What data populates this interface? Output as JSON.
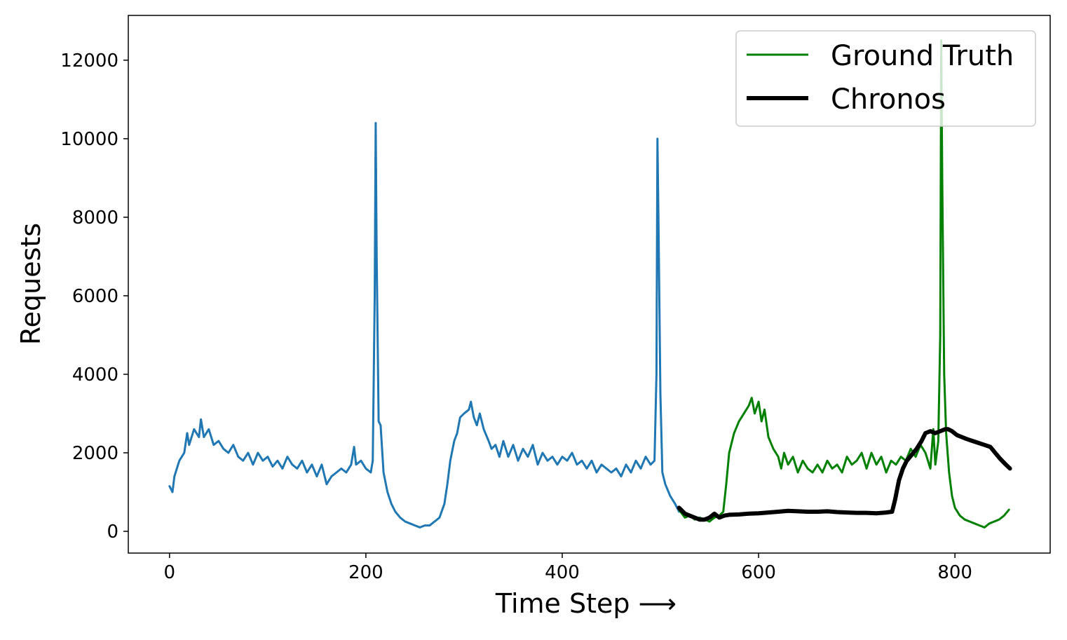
{
  "chart_data": {
    "type": "line",
    "title": "",
    "xlabel": "Time Step ⟶",
    "ylabel": "Requests",
    "xlim": [
      -42,
      897
    ],
    "ylim": [
      -554,
      13140
    ],
    "xticks": [
      0,
      200,
      400,
      600,
      800
    ],
    "xtick_labels": [
      "0",
      "200",
      "400",
      "600",
      "800"
    ],
    "yticks": [
      0,
      2000,
      4000,
      6000,
      8000,
      10000,
      12000
    ],
    "ytick_labels": [
      "0",
      "2000",
      "4000",
      "6000",
      "8000",
      "10000",
      "12000"
    ],
    "grid": false,
    "legend_placement": "top-right",
    "legend": [
      "Ground Truth",
      "Chronos"
    ],
    "series": [
      {
        "name": "History",
        "color": "#1f77b4",
        "in_legend": false,
        "x": [
          0,
          3,
          5,
          10,
          15,
          18,
          20,
          25,
          30,
          32,
          35,
          40,
          45,
          50,
          55,
          60,
          65,
          70,
          75,
          80,
          85,
          90,
          95,
          100,
          105,
          110,
          115,
          120,
          125,
          130,
          135,
          140,
          145,
          150,
          155,
          160,
          165,
          170,
          175,
          180,
          185,
          188,
          190,
          195,
          200,
          205,
          207,
          209,
          210,
          211,
          213,
          215,
          218,
          222,
          226,
          230,
          235,
          240,
          245,
          250,
          255,
          260,
          265,
          270,
          275,
          280,
          283,
          286,
          290,
          293,
          296,
          300,
          305,
          307,
          310,
          313,
          316,
          320,
          325,
          328,
          332,
          336,
          340,
          345,
          350,
          355,
          360,
          365,
          370,
          375,
          380,
          385,
          390,
          395,
          400,
          405,
          410,
          415,
          420,
          425,
          430,
          435,
          440,
          445,
          450,
          455,
          460,
          465,
          470,
          475,
          480,
          485,
          490,
          494,
          496,
          497,
          498,
          500,
          502,
          505,
          510,
          515,
          519
        ],
        "y": [
          1150,
          1000,
          1400,
          1800,
          2000,
          2500,
          2200,
          2600,
          2400,
          2850,
          2400,
          2600,
          2200,
          2300,
          2100,
          2000,
          2200,
          1900,
          1800,
          2000,
          1700,
          2000,
          1800,
          1900,
          1650,
          1800,
          1600,
          1900,
          1700,
          1600,
          1800,
          1500,
          1700,
          1400,
          1700,
          1200,
          1400,
          1500,
          1600,
          1500,
          1700,
          2150,
          1700,
          1800,
          1600,
          1500,
          1800,
          6000,
          10400,
          7000,
          2800,
          2700,
          1500,
          1000,
          700,
          500,
          350,
          250,
          200,
          150,
          100,
          150,
          150,
          250,
          350,
          700,
          1200,
          1800,
          2300,
          2500,
          2900,
          3000,
          3100,
          3300,
          2900,
          2700,
          3000,
          2600,
          2300,
          2100,
          2200,
          1900,
          2300,
          1900,
          2200,
          1800,
          2100,
          1900,
          2200,
          1700,
          2000,
          1800,
          1900,
          1700,
          1900,
          1800,
          2000,
          1700,
          1800,
          1600,
          1800,
          1500,
          1700,
          1600,
          1500,
          1600,
          1400,
          1700,
          1500,
          1800,
          1600,
          1900,
          1700,
          1800,
          4000,
          10000,
          8000,
          3500,
          1500,
          1200,
          900,
          700,
          500
        ]
      },
      {
        "name": "Ground Truth",
        "color": "#008000",
        "in_legend": true,
        "x": [
          519,
          525,
          530,
          535,
          540,
          545,
          550,
          555,
          560,
          564,
          567,
          570,
          575,
          580,
          585,
          590,
          593,
          596,
          600,
          603,
          606,
          610,
          615,
          620,
          623,
          626,
          630,
          635,
          640,
          645,
          650,
          655,
          660,
          665,
          670,
          675,
          680,
          685,
          690,
          695,
          700,
          705,
          710,
          715,
          720,
          725,
          730,
          735,
          740,
          745,
          750,
          755,
          760,
          765,
          770,
          775,
          778,
          780,
          783,
          785,
          786,
          787,
          789,
          791,
          794,
          797,
          800,
          805,
          810,
          815,
          820,
          825,
          830,
          835,
          840,
          845,
          850,
          855
        ],
        "y": [
          550,
          350,
          400,
          300,
          350,
          300,
          250,
          350,
          400,
          500,
          1200,
          2000,
          2500,
          2800,
          3000,
          3200,
          3400,
          3000,
          3300,
          2800,
          3100,
          2400,
          2100,
          1900,
          1600,
          2000,
          1700,
          1900,
          1500,
          1800,
          1600,
          1500,
          1700,
          1500,
          1800,
          1600,
          1700,
          1500,
          1900,
          1700,
          1800,
          2000,
          1600,
          2000,
          1700,
          1900,
          1500,
          1800,
          1700,
          1900,
          1800,
          2100,
          1900,
          2200,
          2000,
          1600,
          2600,
          1700,
          2300,
          5000,
          12500,
          9000,
          4000,
          2500,
          1500,
          900,
          600,
          400,
          300,
          250,
          200,
          150,
          100,
          200,
          250,
          300,
          400,
          550
        ]
      },
      {
        "name": "Chronos",
        "color": "#000000",
        "in_legend": true,
        "x": [
          519,
          525,
          530,
          535,
          540,
          545,
          550,
          555,
          560,
          565,
          570,
          580,
          590,
          600,
          610,
          620,
          630,
          640,
          650,
          660,
          670,
          680,
          690,
          700,
          710,
          720,
          730,
          736,
          739,
          743,
          747,
          751,
          756,
          761,
          766,
          770,
          775,
          780,
          785,
          790,
          793,
          797,
          802,
          807,
          812,
          818,
          824,
          830,
          836,
          841,
          846,
          851,
          856
        ],
        "y": [
          600,
          450,
          400,
          350,
          300,
          300,
          350,
          450,
          350,
          400,
          420,
          430,
          450,
          460,
          480,
          500,
          520,
          510,
          500,
          500,
          510,
          490,
          480,
          470,
          470,
          460,
          480,
          500,
          800,
          1300,
          1600,
          1800,
          1950,
          2100,
          2300,
          2500,
          2550,
          2500,
          2550,
          2600,
          2600,
          2550,
          2450,
          2400,
          2350,
          2300,
          2250,
          2200,
          2150,
          2000,
          1850,
          1720,
          1600
        ]
      }
    ]
  }
}
